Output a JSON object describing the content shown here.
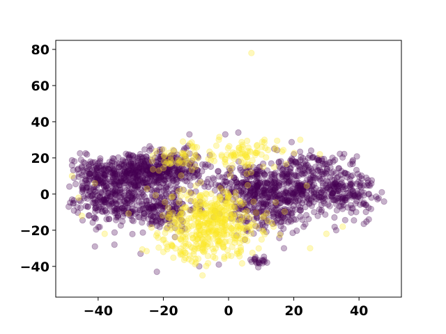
{
  "chart_data": {
    "type": "scatter",
    "title": "",
    "xlabel": "",
    "ylabel": "",
    "xlim": [
      -53,
      53
    ],
    "ylim": [
      -57,
      85
    ],
    "xticks": [
      -40,
      -20,
      0,
      20,
      40
    ],
    "yticks": [
      -40,
      -20,
      0,
      20,
      40,
      60,
      80
    ],
    "xtick_labels": [
      "−40",
      "−20",
      "0",
      "20",
      "40"
    ],
    "ytick_labels": [
      "−40",
      "−20",
      "0",
      "20",
      "40",
      "60",
      "80"
    ],
    "grid": false,
    "legend": "none",
    "marker_opacity": 0.3,
    "series": [
      {
        "color": "#440154",
        "clusters": [
          {
            "center": [
              -30,
              13
            ],
            "spread": [
              7,
              5
            ],
            "count": 300
          },
          {
            "center": [
              -35,
              -2
            ],
            "spread": [
              6,
              7
            ],
            "count": 250
          },
          {
            "center": [
              -18,
              12
            ],
            "spread": [
              6,
              6
            ],
            "count": 250
          },
          {
            "center": [
              -22,
              -8
            ],
            "spread": [
              6,
              6
            ],
            "count": 200
          },
          {
            "center": [
              -42,
              8
            ],
            "spread": [
              3,
              7
            ],
            "count": 60
          },
          {
            "center": [
              6,
              5
            ],
            "spread": [
              5,
              6
            ],
            "count": 180
          },
          {
            "center": [
              18,
              2
            ],
            "spread": [
              7,
              7
            ],
            "count": 320
          },
          {
            "center": [
              12,
              -12
            ],
            "spread": [
              6,
              5
            ],
            "count": 120
          },
          {
            "center": [
              35,
              2
            ],
            "spread": [
              5,
              7
            ],
            "count": 200
          },
          {
            "center": [
              25,
              15
            ],
            "spread": [
              5,
              5
            ],
            "count": 90
          },
          {
            "center": [
              9,
              -37
            ],
            "spread": [
              1.2,
              1.2
            ],
            "count": 20
          }
        ],
        "points": [
          [
            -12,
            33
          ],
          [
            -1,
            33
          ],
          [
            3,
            34
          ],
          [
            -3,
            -39
          ],
          [
            -27,
            -33
          ],
          [
            -22,
            -43
          ],
          [
            -9,
            -40
          ],
          [
            17,
            -30
          ],
          [
            -41,
            -29
          ],
          [
            47,
            1
          ],
          [
            43,
            -14
          ],
          [
            20,
            22
          ],
          [
            14,
            25
          ],
          [
            -44,
            17
          ],
          [
            -48,
            -3
          ],
          [
            38,
            18
          ],
          [
            33,
            -20
          ],
          [
            -35,
            -28
          ]
        ]
      },
      {
        "color": "#fde725",
        "clusters": [
          {
            "center": [
              -5,
              -15
            ],
            "spread": [
              8,
              9
            ],
            "count": 420
          },
          {
            "center": [
              5,
              22
            ],
            "spread": [
              5,
              4
            ],
            "count": 80
          },
          {
            "center": [
              -15,
              20
            ],
            "spread": [
              6,
              4
            ],
            "count": 50
          },
          {
            "center": [
              -10,
              -30
            ],
            "spread": [
              6,
              4
            ],
            "count": 60
          }
        ],
        "points": [
          [
            7,
            78
          ],
          [
            -48,
            10
          ],
          [
            -45,
            -12
          ],
          [
            -41,
            6
          ],
          [
            -38,
            -22
          ],
          [
            -46,
            -2
          ],
          [
            -8,
            -45
          ],
          [
            -14,
            29
          ],
          [
            11,
            30
          ],
          [
            -20,
            -32
          ],
          [
            22,
            30
          ],
          [
            25,
            -30
          ],
          [
            30,
            -22
          ],
          [
            35,
            -18
          ],
          [
            28,
            22
          ],
          [
            -3,
            30
          ],
          [
            -25,
            3
          ]
        ]
      }
    ]
  }
}
